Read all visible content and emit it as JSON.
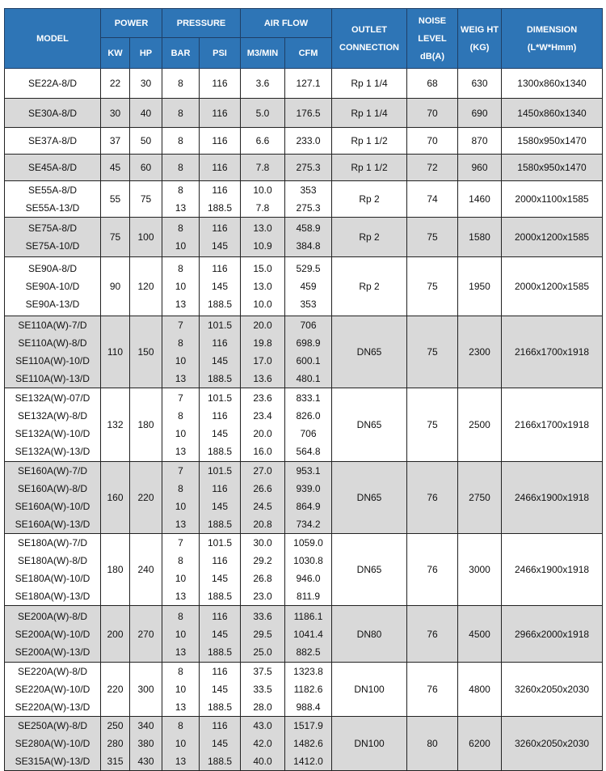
{
  "header": {
    "model": "MODEL",
    "power": "POWER",
    "pressure": "PRESSURE",
    "air_flow": "AIR FLOW",
    "outlet": "OUTLET CONNECTION",
    "noise": "NOISE LEVEL dB(A)",
    "weight": "WEIG HT (KG)",
    "dimension": "DIMENSION (L*W*Hmm)",
    "kw": "KW",
    "hp": "HP",
    "bar": "BAR",
    "psi": "PSI",
    "m3min": "M3/MIN",
    "cfm": "CFM"
  },
  "header_color": "#2e75b6",
  "rows": [
    {
      "models": [
        "SE22A-8/D"
      ],
      "kw": [
        "22"
      ],
      "hp": [
        "30"
      ],
      "bar": [
        "8"
      ],
      "psi": [
        "116"
      ],
      "m3": [
        "3.6"
      ],
      "cfm": [
        "127.1"
      ],
      "outlet": "Rp 1 1/4",
      "noise": "68",
      "weight": "630",
      "dimension": "1300x860x1340"
    },
    {
      "models": [
        "SE30A-8/D"
      ],
      "kw": [
        "30"
      ],
      "hp": [
        "40"
      ],
      "bar": [
        "8"
      ],
      "psi": [
        "116"
      ],
      "m3": [
        "5.0"
      ],
      "cfm": [
        "176.5"
      ],
      "outlet": "Rp 1 1/4",
      "noise": "70",
      "weight": "690",
      "dimension": "1450x860x1340"
    },
    {
      "models": [
        "SE37A-8/D"
      ],
      "kw": [
        "37"
      ],
      "hp": [
        "50"
      ],
      "bar": [
        "8"
      ],
      "psi": [
        "116"
      ],
      "m3": [
        "6.6"
      ],
      "cfm": [
        "233.0"
      ],
      "outlet": "Rp 1 1/2",
      "noise": "70",
      "weight": "870",
      "dimension": "1580x950x1470"
    },
    {
      "models": [
        "SE45A-8/D"
      ],
      "kw": [
        "45"
      ],
      "hp": [
        "60"
      ],
      "bar": [
        "8"
      ],
      "psi": [
        "116"
      ],
      "m3": [
        "7.8"
      ],
      "cfm": [
        "275.3"
      ],
      "outlet": "Rp 1 1/2",
      "noise": "72",
      "weight": "960",
      "dimension": "1580x950x1470"
    },
    {
      "models": [
        "SE55A-8/D",
        "SE55A-13/D"
      ],
      "kw": [
        "55"
      ],
      "hp": [
        "75"
      ],
      "bar": [
        "8",
        "13"
      ],
      "psi": [
        "116",
        "188.5"
      ],
      "m3": [
        "10.0",
        "7.8"
      ],
      "cfm": [
        "353",
        "275.3"
      ],
      "outlet": "Rp 2",
      "noise": "74",
      "weight": "1460",
      "dimension": "2000x1100x1585"
    },
    {
      "models": [
        "SE75A-8/D",
        "SE75A-10/D"
      ],
      "kw": [
        "75"
      ],
      "hp": [
        "100"
      ],
      "bar": [
        "8",
        "10"
      ],
      "psi": [
        "116",
        "145"
      ],
      "m3": [
        "13.0",
        "10.9"
      ],
      "cfm": [
        "458.9",
        "384.8"
      ],
      "outlet": "Rp 2",
      "noise": "75",
      "weight": "1580",
      "dimension": "2000x1200x1585"
    },
    {
      "models": [
        "SE90A-8/D",
        "SE90A-10/D",
        "SE90A-13/D"
      ],
      "kw": [
        "90"
      ],
      "hp": [
        "120"
      ],
      "bar": [
        "8",
        "10",
        "13"
      ],
      "psi": [
        "116",
        "145",
        "188.5"
      ],
      "m3": [
        "15.0",
        "13.0",
        "10.0"
      ],
      "cfm": [
        "529.5",
        "459",
        "353"
      ],
      "outlet": "Rp 2",
      "noise": "75",
      "weight": "1950",
      "dimension": "2000x1200x1585"
    },
    {
      "models": [
        "SE110A(W)-7/D",
        "SE110A(W)-8/D",
        "SE110A(W)-10/D",
        "SE110A(W)-13/D"
      ],
      "kw": [
        "110"
      ],
      "hp": [
        "150"
      ],
      "bar": [
        "7",
        "8",
        "10",
        "13"
      ],
      "psi": [
        "101.5",
        "116",
        "145",
        "188.5"
      ],
      "m3": [
        "20.0",
        "19.8",
        "17.0",
        "13.6"
      ],
      "cfm": [
        "706",
        "698.9",
        "600.1",
        "480.1"
      ],
      "outlet": "DN65",
      "noise": "75",
      "weight": "2300",
      "dimension": "2166x1700x1918"
    },
    {
      "models": [
        "SE132A(W)-07/D",
        "SE132A(W)-8/D",
        "SE132A(W)-10/D",
        "SE132A(W)-13/D"
      ],
      "kw": [
        "132"
      ],
      "hp": [
        "180"
      ],
      "bar": [
        "7",
        "8",
        "10",
        "13"
      ],
      "psi": [
        "101.5",
        "116",
        "145",
        "188.5"
      ],
      "m3": [
        "23.6",
        "23.4",
        "20.0",
        "16.0"
      ],
      "cfm": [
        "833.1",
        "826.0",
        "706",
        "564.8"
      ],
      "outlet": "DN65",
      "noise": "75",
      "weight": "2500",
      "dimension": "2166x1700x1918"
    },
    {
      "models": [
        "SE160A(W)-7/D",
        "SE160A(W)-8/D",
        "SE160A(W)-10/D",
        "SE160A(W)-13/D"
      ],
      "kw": [
        "160"
      ],
      "hp": [
        "220"
      ],
      "bar": [
        "7",
        "8",
        "10",
        "13"
      ],
      "psi": [
        "101.5",
        "116",
        "145",
        "188.5"
      ],
      "m3": [
        "27.0",
        "26.6",
        "24.5",
        "20.8"
      ],
      "cfm": [
        "953.1",
        "939.0",
        "864.9",
        "734.2"
      ],
      "outlet": "DN65",
      "noise": "76",
      "weight": "2750",
      "dimension": "2466x1900x1918"
    },
    {
      "models": [
        "SE180A(W)-7/D",
        "SE180A(W)-8/D",
        "SE180A(W)-10/D",
        "SE180A(W)-13/D"
      ],
      "kw": [
        "180"
      ],
      "hp": [
        "240"
      ],
      "bar": [
        "7",
        "8",
        "10",
        "13"
      ],
      "psi": [
        "101.5",
        "116",
        "145",
        "188.5"
      ],
      "m3": [
        "30.0",
        "29.2",
        "26.8",
        "23.0"
      ],
      "cfm": [
        "1059.0",
        "1030.8",
        "946.0",
        "811.9"
      ],
      "outlet": "DN65",
      "noise": "76",
      "weight": "3000",
      "dimension": "2466x1900x1918"
    },
    {
      "models": [
        "SE200A(W)-8/D",
        "SE200A(W)-10/D",
        "SE200A(W)-13/D"
      ],
      "kw": [
        "200"
      ],
      "hp": [
        "270"
      ],
      "bar": [
        "8",
        "10",
        "13"
      ],
      "psi": [
        "116",
        "145",
        "188.5"
      ],
      "m3": [
        "33.6",
        "29.5",
        "25.0"
      ],
      "cfm": [
        "1186.1",
        "1041.4",
        "882.5"
      ],
      "outlet": "DN80",
      "noise": "76",
      "weight": "4500",
      "dimension": "2966x2000x1918"
    },
    {
      "models": [
        "SE220A(W)-8/D",
        "SE220A(W)-10/D",
        "SE220A(W)-13/D"
      ],
      "kw": [
        "220"
      ],
      "hp": [
        "300"
      ],
      "bar": [
        "8",
        "10",
        "13"
      ],
      "psi": [
        "116",
        "145",
        "188.5"
      ],
      "m3": [
        "37.5",
        "33.5",
        "28.0"
      ],
      "cfm": [
        "1323.8",
        "1182.6",
        "988.4"
      ],
      "outlet": "DN100",
      "noise": "76",
      "weight": "4800",
      "dimension": "3260x2050x2030"
    },
    {
      "models": [
        "SE250A(W)-8/D",
        "SE280A(W)-10/D",
        "SE315A(W)-13/D"
      ],
      "kw": [
        "250",
        "280",
        "315"
      ],
      "hp": [
        "340",
        "380",
        "430"
      ],
      "bar": [
        "8",
        "10",
        "13"
      ],
      "psi": [
        "116",
        "145",
        "188.5"
      ],
      "m3": [
        "43.0",
        "42.0",
        "40.0"
      ],
      "cfm": [
        "1517.9",
        "1482.6",
        "1412.0"
      ],
      "outlet": "DN100",
      "noise": "80",
      "weight": "6200",
      "dimension": "3260x2050x2030"
    }
  ]
}
